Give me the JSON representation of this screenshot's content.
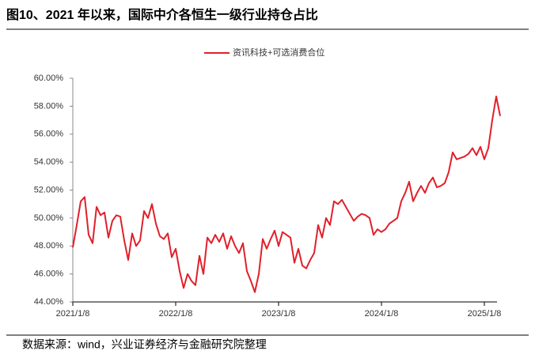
{
  "chart_data": {
    "type": "line",
    "title": "图10、2021 年以来，国际中介各恒生一级行业持仓占比",
    "source": "数据来源：wind，兴业证券经济与金融研究院整理",
    "categories": [
      "2021/1/8",
      null,
      null,
      null,
      null,
      null,
      null,
      null,
      null,
      null,
      null,
      null,
      null,
      null,
      null,
      null,
      null,
      null,
      null,
      null,
      null,
      null,
      null,
      null,
      null,
      null,
      "2022/1/8",
      null,
      null,
      null,
      null,
      null,
      null,
      null,
      null,
      null,
      null,
      null,
      null,
      null,
      null,
      null,
      null,
      null,
      null,
      null,
      null,
      null,
      null,
      null,
      null,
      null,
      "2023/1/8",
      null,
      null,
      null,
      null,
      null,
      null,
      null,
      null,
      null,
      null,
      null,
      null,
      null,
      null,
      null,
      null,
      null,
      null,
      null,
      null,
      null,
      null,
      null,
      null,
      null,
      "2024/1/8",
      null,
      null,
      null,
      null,
      null,
      null,
      null,
      null,
      null,
      null,
      null,
      null,
      null,
      null,
      null,
      null,
      null,
      null,
      null,
      null,
      null,
      null,
      null,
      null,
      null,
      "2025/1/8",
      null,
      null,
      null,
      null
    ],
    "series": [
      {
        "name": "资讯科技+可选消费合位",
        "color": "#e0202b",
        "values": [
          47.9,
          49.5,
          51.2,
          51.5,
          48.8,
          48.2,
          50.8,
          50.2,
          50.4,
          48.6,
          49.8,
          50.2,
          50.1,
          48.4,
          47.0,
          48.9,
          48.0,
          48.4,
          50.5,
          50.0,
          51.0,
          49.6,
          48.7,
          48.5,
          48.9,
          47.2,
          47.8,
          46.2,
          45.0,
          46.0,
          45.5,
          45.2,
          47.3,
          46.0,
          48.6,
          48.2,
          48.8,
          48.3,
          48.9,
          47.8,
          48.7,
          48.0,
          47.5,
          48.2,
          46.2,
          45.5,
          44.7,
          46.0,
          48.5,
          47.8,
          48.5,
          49.1,
          48.0,
          49.0,
          48.8,
          48.6,
          46.8,
          47.8,
          46.6,
          46.4,
          47.0,
          47.5,
          49.5,
          48.6,
          50.0,
          49.5,
          51.2,
          51.0,
          51.3,
          50.8,
          50.3,
          49.8,
          50.1,
          50.3,
          50.2,
          50.0,
          48.8,
          49.2,
          49.0,
          49.2,
          49.6,
          49.8,
          50.0,
          51.2,
          51.8,
          52.6,
          51.2,
          51.8,
          52.3,
          51.8,
          52.5,
          52.9,
          52.2,
          52.3,
          52.5,
          53.3,
          54.7,
          54.2,
          54.3,
          54.4,
          54.6,
          55.0,
          54.5,
          55.1,
          54.2,
          55.0,
          57.0,
          58.7,
          57.3
        ]
      }
    ],
    "ylim": [
      44,
      60
    ],
    "yticks": [
      {
        "value": 44,
        "label": "44.00%"
      },
      {
        "value": 46,
        "label": "46.00%"
      },
      {
        "value": 48,
        "label": "48.00%"
      },
      {
        "value": 50,
        "label": "50.00%"
      },
      {
        "value": 52,
        "label": "52.00%"
      },
      {
        "value": 54,
        "label": "54.00%"
      },
      {
        "value": 56,
        "label": "56.00%"
      },
      {
        "value": 58,
        "label": "58.00%"
      },
      {
        "value": 60,
        "label": "60.00%"
      }
    ],
    "grid": false,
    "legend": "top"
  }
}
